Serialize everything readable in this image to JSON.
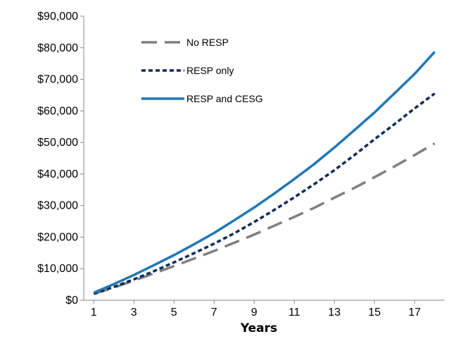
{
  "chart_data": {
    "type": "line",
    "title": "",
    "xlabel": "Years",
    "ylabel": "",
    "x": [
      1,
      2,
      3,
      4,
      5,
      6,
      7,
      8,
      9,
      10,
      11,
      12,
      13,
      14,
      15,
      16,
      17,
      18
    ],
    "xticks": [
      1,
      3,
      5,
      7,
      9,
      11,
      13,
      15,
      17
    ],
    "xlim": [
      0.5,
      18.5
    ],
    "ylim": [
      0,
      90000
    ],
    "yticks": [
      0,
      10000,
      20000,
      30000,
      40000,
      50000,
      60000,
      70000,
      80000,
      90000
    ],
    "ytick_labels": [
      "$0",
      "$10,000",
      "$20,000",
      "$30,000",
      "$40,000",
      "$50,000",
      "$60,000",
      "$70,000",
      "$80,000",
      "$90,000"
    ],
    "grid": false,
    "legend_position": "top-left",
    "series": [
      {
        "name": "No RESP",
        "color": "#7f7f7f",
        "style": "long-dash",
        "values": [
          2000,
          4000,
          6200,
          8500,
          10800,
          13200,
          15600,
          18200,
          20800,
          23600,
          26400,
          29300,
          32500,
          35600,
          39000,
          42400,
          46000,
          49700
        ]
      },
      {
        "name": "RESP only",
        "color": "#0b2a5b",
        "style": "dotted",
        "values": [
          2000,
          4200,
          6600,
          9200,
          12000,
          14900,
          17900,
          21200,
          24800,
          28600,
          32600,
          36800,
          41200,
          46000,
          51000,
          55800,
          60800,
          65500
        ]
      },
      {
        "name": "RESP and CESG",
        "color": "#1f77b4",
        "style": "solid",
        "values": [
          2400,
          5100,
          8000,
          11100,
          14300,
          17700,
          21300,
          25300,
          29400,
          33800,
          38400,
          43200,
          48400,
          53900,
          59500,
          65600,
          71700,
          78700
        ]
      }
    ]
  }
}
